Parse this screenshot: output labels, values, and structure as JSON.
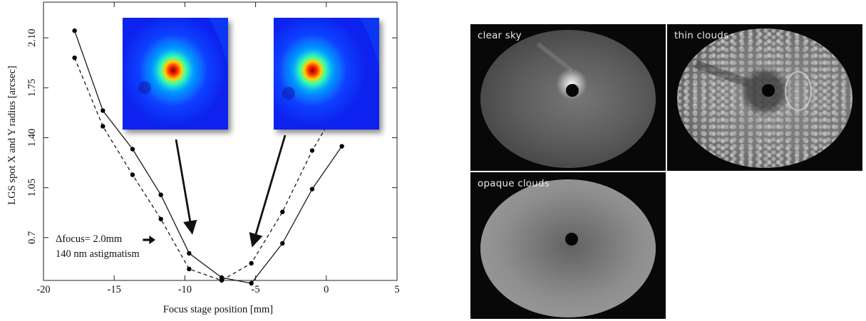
{
  "chart_data": {
    "type": "line",
    "title": "",
    "xlabel": "Focus stage position [mm]",
    "ylabel": "LGS spot X and Y radius [arcsec]",
    "xlim": [
      -20,
      5
    ],
    "ylim": [
      0.4,
      2.35
    ],
    "xticks": [
      "-20",
      "-15",
      "-10",
      "-5",
      "0",
      "5"
    ],
    "yticks": [
      "0.7",
      "1.05",
      "1.40",
      "1.75",
      "2.10"
    ],
    "grid": false,
    "series": [
      {
        "style": "solid",
        "x": [
          -17.8,
          -15.8,
          -13.7,
          -11.7,
          -9.7,
          -7.4,
          -5.3,
          -3.1,
          -1.0,
          1.1
        ],
        "y": [
          2.15,
          1.59,
          1.32,
          1.0,
          0.59,
          0.42,
          0.38,
          0.66,
          1.04,
          1.34
        ]
      },
      {
        "style": "dashed",
        "x": [
          -17.8,
          -15.8,
          -13.7,
          -11.7,
          -9.7,
          -7.4,
          -5.3,
          -3.1,
          -1.0,
          1.1
        ],
        "y": [
          1.96,
          1.48,
          1.14,
          0.83,
          0.48,
          0.4,
          0.52,
          0.88,
          1.31,
          1.66
        ]
      }
    ],
    "annotations": {
      "delta_focus": "Δfocus= 2.0mm",
      "astigmatism": "140 nm astigmatism"
    }
  },
  "insets": [
    {
      "name": "spot-image-left",
      "arrow_target": {
        "x": -9.5,
        "y": 0.74
      }
    },
    {
      "name": "spot-image-right",
      "arrow_target": {
        "x": -5.2,
        "y": 0.65
      }
    }
  ],
  "cameras": [
    {
      "label": "clear sky",
      "style": "clear"
    },
    {
      "label": "thin clouds",
      "style": "thin"
    },
    {
      "label": "opaque clouds",
      "style": "opaque"
    }
  ]
}
